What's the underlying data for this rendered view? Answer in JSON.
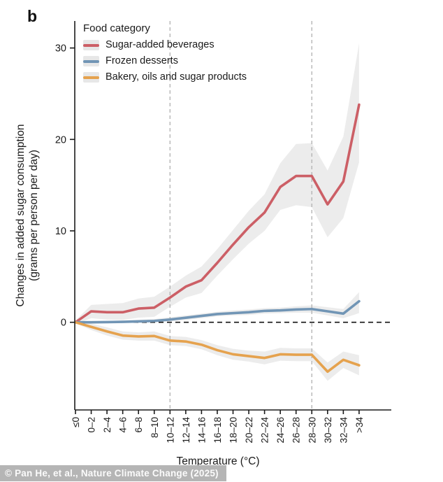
{
  "panel_label": "b",
  "attribution": "© Pan He, et al., Nature Climate Change (2025)",
  "legend": {
    "title": "Food category"
  },
  "chart_data": {
    "type": "line",
    "title": "",
    "xlabel": "Temperature (°C)",
    "ylabel": "Changes in added sugar consumption",
    "ylabel_unit": "(grams per person per day)",
    "categories": [
      "≤0",
      "0–2",
      "2–4",
      "4–6",
      "6–8",
      "8–10",
      "10–12",
      "12–14",
      "14–16",
      "16–18",
      "18–20",
      "20–22",
      "22–24",
      "24–26",
      "26–28",
      "28–30",
      "30–32",
      "32–34",
      ">34"
    ],
    "yticks": [
      0,
      10,
      20,
      30
    ],
    "ylim": [
      -9.5,
      33
    ],
    "grid": false,
    "legend_position": "top-left",
    "zero_dashed_line": true,
    "vline_categories": [
      "10–12",
      "28–30"
    ],
    "band_color": "#e9e9e9",
    "axis_color": "#1a1a1a",
    "vline_color": "#b0b0b0",
    "series": [
      {
        "name": "Sugar-added beverages",
        "color": "#cc5f66",
        "values": [
          0,
          1.2,
          1.1,
          1.1,
          1.5,
          1.6,
          2.7,
          3.9,
          4.6,
          6.5,
          8.5,
          10.4,
          12.0,
          14.8,
          16.0,
          16.0,
          12.9,
          15.4,
          23.8
        ],
        "upper": [
          0.2,
          1.9,
          2.0,
          2.1,
          2.6,
          2.8,
          3.9,
          5.1,
          6.1,
          8.0,
          10.1,
          12.2,
          14.0,
          17.4,
          19.5,
          19.6,
          16.6,
          20.3,
          30.5
        ],
        "lower": [
          -0.2,
          0.45,
          0.3,
          0.25,
          0.5,
          0.6,
          1.7,
          2.7,
          3.2,
          5.1,
          6.9,
          8.6,
          10.0,
          12.3,
          12.8,
          12.6,
          9.3,
          11.4,
          17.5
        ]
      },
      {
        "name": "Frozen desserts",
        "color": "#7195b5",
        "values": [
          0,
          0,
          0.02,
          0.05,
          0.1,
          0.15,
          0.3,
          0.5,
          0.7,
          0.9,
          1.0,
          1.1,
          1.25,
          1.3,
          1.4,
          1.45,
          1.2,
          0.95,
          2.3
        ],
        "upper": [
          0.1,
          0.12,
          0.15,
          0.2,
          0.28,
          0.35,
          0.55,
          0.75,
          0.95,
          1.15,
          1.3,
          1.4,
          1.55,
          1.6,
          1.75,
          1.85,
          1.65,
          1.45,
          3.3
        ],
        "lower": [
          -0.1,
          -0.12,
          -0.1,
          -0.08,
          -0.05,
          0,
          0.1,
          0.25,
          0.45,
          0.65,
          0.75,
          0.8,
          0.95,
          1.0,
          1.05,
          1.05,
          0.75,
          0.45,
          1.0
        ]
      },
      {
        "name": "Bakery, oils and sugar products",
        "color": "#e5a24e",
        "values": [
          0,
          -0.5,
          -1.0,
          -1.45,
          -1.55,
          -1.5,
          -2.0,
          -2.1,
          -2.45,
          -3.05,
          -3.5,
          -3.7,
          -3.9,
          -3.5,
          -3.55,
          -3.55,
          -5.4,
          -4.1,
          -4.7
        ],
        "upper": [
          0.1,
          -0.15,
          -0.55,
          -1.0,
          -1.1,
          -1.0,
          -1.5,
          -1.6,
          -1.95,
          -2.5,
          -2.9,
          -3.1,
          -3.2,
          -2.8,
          -2.85,
          -2.85,
          -4.4,
          -3.2,
          -3.6
        ],
        "lower": [
          -0.1,
          -0.85,
          -1.45,
          -1.9,
          -2.0,
          -2.0,
          -2.5,
          -2.6,
          -2.95,
          -3.6,
          -4.1,
          -4.3,
          -4.6,
          -4.2,
          -4.25,
          -4.25,
          -6.4,
          -5.0,
          -5.8
        ]
      }
    ]
  }
}
